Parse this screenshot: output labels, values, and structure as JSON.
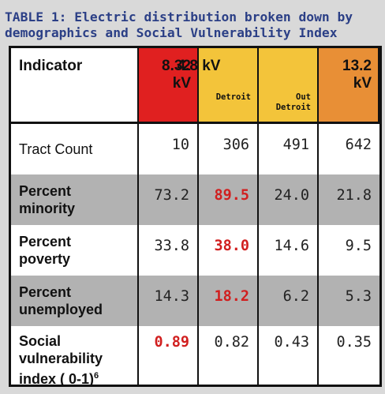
{
  "caption": {
    "line1": "TABLE 1: Electric distribution broken down by",
    "line2": "demographics and Social Vulnerability Index"
  },
  "header": {
    "indicator": "Indicator",
    "col_8_32": {
      "line1": "8.32",
      "line2": "kV"
    },
    "col_4_8": "4.8 kV",
    "sub_detroit": "Detroit",
    "sub_out_detroit": {
      "line1": "Out",
      "line2": "Detroit"
    },
    "col_13_2": {
      "line1": "13.2",
      "line2": "kV"
    }
  },
  "rows": [
    {
      "label": "Tract Count",
      "values": [
        "10",
        "306",
        "491",
        "642"
      ]
    },
    {
      "label_line1": "Percent",
      "label_line2": "minority",
      "values": [
        "73.2",
        "89.5",
        "24.0",
        "21.8"
      ]
    },
    {
      "label_line1": "Percent",
      "label_line2": "poverty",
      "values": [
        "33.8",
        "38.0",
        "14.6",
        "9.5"
      ]
    },
    {
      "label_line1": "Percent",
      "label_line2": "unemployed",
      "values": [
        "14.3",
        "18.2",
        "6.2",
        "5.3"
      ]
    },
    {
      "label_line1": "Social",
      "label_line2": "vulnerability",
      "label_line3": "index ( 0-1)",
      "label_sup": "6",
      "values": [
        "0.89",
        "0.82",
        "0.43",
        "0.35"
      ]
    }
  ],
  "colors": {
    "header_red": "#e02020",
    "header_yellow": "#f3c43a",
    "header_orange": "#e88f36",
    "highlight": "#d11f1f",
    "caption": "#2b3f86"
  }
}
